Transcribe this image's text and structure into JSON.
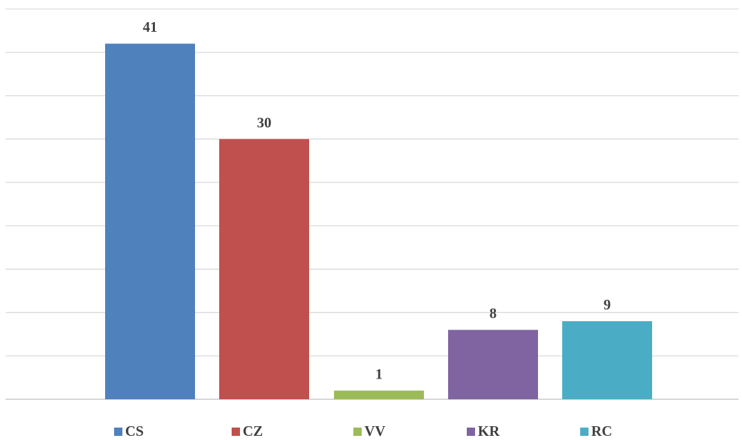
{
  "chart_data": {
    "type": "bar",
    "categories": [
      "CS",
      "CZ",
      "VV",
      "KR",
      "RC"
    ],
    "values": [
      41,
      30,
      1,
      8,
      9
    ],
    "colors": [
      "#4f81bd",
      "#c0504d",
      "#9bbb59",
      "#8064a2",
      "#4bacc6"
    ],
    "title": "",
    "xlabel": "",
    "ylabel": "",
    "ylim": [
      0,
      45
    ],
    "grid": true,
    "legend": "bottom",
    "data_labels": [
      "41",
      "30",
      "1",
      "8",
      "9"
    ]
  }
}
